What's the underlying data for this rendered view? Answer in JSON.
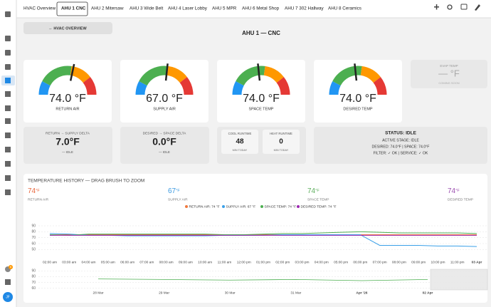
{
  "tabs": [
    "HVAC Overview",
    "AHU 1 CNC",
    "AHU 2 Mitersaw",
    "AHU 3 Wide Belt",
    "AHU 4 Laser Lobby",
    "AHU 5 MPR",
    "AHU 6 Metal Shop",
    "AHU 7 302 Hallway",
    "AHU 8 Ceramics"
  ],
  "back_button": "← HVAC OVERVIEW",
  "title": "AHU 1 — CNC",
  "gauges": [
    {
      "value": "74.0 °F",
      "label": "RETURN AIR"
    },
    {
      "value": "67.0 °F",
      "label": "SUPPLY AIR"
    },
    {
      "value": "74.0 °F",
      "label": "SPACE TEMP"
    },
    {
      "value": "74.0 °F",
      "label": "DESIRED TEMP"
    }
  ],
  "evap": {
    "label": "EVAP TEMP",
    "value": "— °F",
    "note": "COMING SOON"
  },
  "deltas": [
    {
      "label": "RETURN → SUPPLY DELTA",
      "value": "7.0°F",
      "note": "— IDLE"
    },
    {
      "label": "DESIRED → SPACE DELTA",
      "value": "0.0°F",
      "note": "— IDLE"
    }
  ],
  "runtime": [
    {
      "label": "COOL RUNTIME",
      "value": "48",
      "note": "MIN TODAY"
    },
    {
      "label": "HEAT RUNTIME",
      "value": "0",
      "note": "MIN TODAY"
    }
  ],
  "status": {
    "title": "STATUS: IDLE",
    "lines": [
      "ACTIVE STAGE: IDLE",
      "DESIRED: 74.0°F | SPACE: 74.0°F",
      "FILTER: ✓ OK | SERVICE: ✓ OK"
    ]
  },
  "history": {
    "title": "TEMPERATURE HISTORY — DRAG BRUSH TO ZOOM",
    "stats": [
      {
        "value": "74",
        "unit": "°F",
        "label": "RETURN AIR",
        "color": "#e8663d"
      },
      {
        "value": "67",
        "unit": "°F",
        "label": "SUPPLY AIR",
        "color": "#3b9ae1"
      },
      {
        "value": "74",
        "unit": "°F",
        "label": "SPACE TEMP",
        "color": "#5cae5c"
      },
      {
        "value": "74",
        "unit": "°F",
        "label": "DESIRED TEMP",
        "color": "#9b4fb0"
      }
    ]
  },
  "sidebar": {
    "badge": "6",
    "avatar": "JF"
  },
  "chart_data": [
    {
      "type": "line",
      "categories": [
        "02:00 am",
        "03:00 am",
        "04:00 am",
        "05:00 am",
        "06:00 am",
        "07:00 am",
        "08:00 am",
        "09:00 am",
        "10:00 am",
        "11:00 am",
        "12:00 pm",
        "01:00 pm",
        "02:00 pm",
        "03:00 pm",
        "04:00 pm",
        "05:00 pm",
        "06:00 pm",
        "07:00 pm",
        "08:00 pm",
        "09:00 pm",
        "10:00 pm",
        "11:00 pm",
        "03 Apr"
      ],
      "series": [
        {
          "name": "RETURN AIR: 74 °F",
          "color": "#f0783c",
          "values": [
            75,
            75,
            75,
            75,
            75,
            75,
            75,
            75,
            75,
            75,
            75,
            75,
            75,
            75,
            75,
            75,
            75,
            75,
            75,
            75,
            75,
            75,
            75
          ]
        },
        {
          "name": "SUPPLY AIR: 67 °F",
          "color": "#3aa0e8",
          "values": [
            77,
            76,
            74,
            74,
            73,
            73,
            73,
            73,
            73,
            74,
            74,
            74,
            75,
            75,
            75,
            75,
            75,
            57,
            57,
            57,
            56,
            56,
            55
          ]
        },
        {
          "name": "SPACE TEMP: 74 °F",
          "color": "#4caf50",
          "values": [
            75,
            74,
            76,
            76,
            76,
            76,
            76,
            76,
            76,
            75,
            75,
            76,
            77,
            77,
            78,
            79,
            80,
            79,
            78,
            78,
            78,
            78,
            77
          ]
        },
        {
          "name": "DESIRED TEMP: 74 °F",
          "color": "#9c27b0",
          "values": [
            74,
            74,
            74,
            74,
            74,
            74,
            74,
            74,
            74,
            74,
            74,
            74,
            74,
            74,
            74,
            74,
            74,
            74,
            74,
            74,
            74,
            74,
            74
          ]
        }
      ],
      "ylim": [
        42,
        96
      ],
      "yticks": [
        90,
        80,
        70,
        60,
        50
      ],
      "grid": true
    },
    {
      "type": "line",
      "categories": [
        "28 Mar",
        "29 Mar",
        "30 Mar",
        "31 Mar",
        "Apr '26",
        "02 Apr"
      ],
      "series": [
        {
          "color": "#4caf50",
          "values": [
            76,
            75,
            74,
            75,
            73,
            75
          ]
        }
      ],
      "ylim": [
        57,
        94
      ],
      "yticks": [
        90,
        80,
        70,
        60
      ],
      "grid": true
    }
  ]
}
